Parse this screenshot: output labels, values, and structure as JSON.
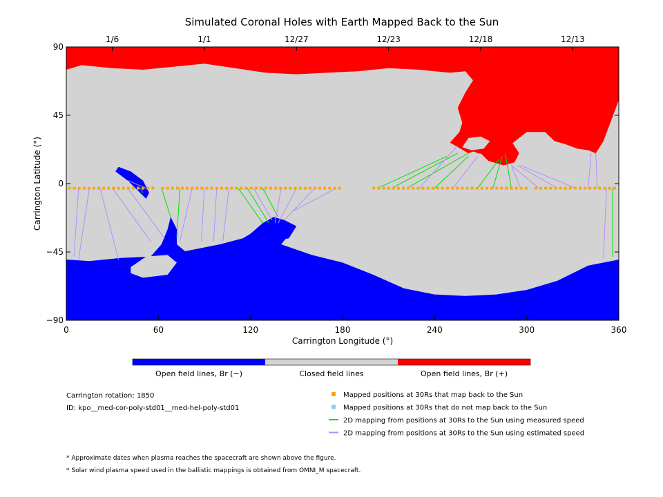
{
  "chart_data": {
    "type": "map",
    "title": "Simulated Coronal Holes with Earth Mapped Back to the Sun",
    "xlabel": "Carrington Longitude (°)",
    "ylabel": "Carrington Latitude (°)",
    "xlim": [
      0,
      360
    ],
    "ylim": [
      -90,
      90
    ],
    "xticks": [
      0,
      60,
      120,
      180,
      240,
      300,
      360
    ],
    "yticks": [
      -90,
      -45,
      0,
      45,
      90
    ],
    "top_axis": {
      "labels": [
        "1/6",
        "1/1",
        "12/27",
        "12/23",
        "12/18",
        "12/13"
      ],
      "longitudes": [
        30,
        90,
        150,
        210,
        270,
        330
      ]
    },
    "colorbar": [
      {
        "label": "Open field lines, Br (−)",
        "color": "#0000ff"
      },
      {
        "label": "Closed field lines",
        "color": "#d3d3d3"
      },
      {
        "label": "Open field lines, Br (+)",
        "color": "#ff0000"
      }
    ],
    "regions": {
      "north_red": [
        [
          0,
          75
        ],
        [
          10,
          78
        ],
        [
          30,
          76
        ],
        [
          50,
          75
        ],
        [
          70,
          77
        ],
        [
          90,
          79
        ],
        [
          110,
          76
        ],
        [
          130,
          73
        ],
        [
          150,
          72
        ],
        [
          170,
          73
        ],
        [
          190,
          74
        ],
        [
          210,
          76
        ],
        [
          230,
          75
        ],
        [
          250,
          73
        ],
        [
          260,
          74
        ],
        [
          265,
          68
        ],
        [
          260,
          60
        ],
        [
          255,
          50
        ],
        [
          258,
          40
        ],
        [
          255,
          30
        ],
        [
          260,
          24
        ],
        [
          268,
          20
        ],
        [
          280,
          18
        ],
        [
          290,
          26
        ],
        [
          300,
          34
        ],
        [
          312,
          34
        ],
        [
          318,
          28
        ],
        [
          325,
          26
        ],
        [
          333,
          23
        ],
        [
          340,
          22
        ],
        [
          345,
          20
        ],
        [
          350,
          28
        ],
        [
          360,
          55
        ],
        [
          360,
          90
        ],
        [
          0,
          90
        ]
      ],
      "north_red_island": [
        [
          250,
          27
        ],
        [
          262,
          20
        ],
        [
          268,
          22
        ],
        [
          275,
          15
        ],
        [
          285,
          12
        ],
        [
          292,
          14
        ],
        [
          295,
          20
        ],
        [
          290,
          28
        ],
        [
          280,
          34
        ],
        [
          270,
          38
        ],
        [
          258,
          36
        ]
      ],
      "south_blue": [
        [
          0,
          -50
        ],
        [
          15,
          -51
        ],
        [
          35,
          -49
        ],
        [
          55,
          -48
        ],
        [
          70,
          -46
        ],
        [
          85,
          -43
        ],
        [
          100,
          -40
        ],
        [
          115,
          -36
        ],
        [
          125,
          -30
        ],
        [
          135,
          -24
        ],
        [
          148,
          -30
        ],
        [
          140,
          -40
        ],
        [
          160,
          -47
        ],
        [
          180,
          -52
        ],
        [
          200,
          -60
        ],
        [
          220,
          -69
        ],
        [
          240,
          -73
        ],
        [
          260,
          -74
        ],
        [
          280,
          -73
        ],
        [
          300,
          -70
        ],
        [
          320,
          -64
        ],
        [
          340,
          -54
        ],
        [
          360,
          -50
        ],
        [
          360,
          -90
        ],
        [
          0,
          -90
        ]
      ],
      "south_blue_lobe": [
        [
          120,
          -33
        ],
        [
          128,
          -26
        ],
        [
          135,
          -22
        ],
        [
          142,
          -24
        ],
        [
          150,
          -28
        ],
        [
          145,
          -36
        ],
        [
          134,
          -38
        ]
      ],
      "south_blue_bridge": [
        [
          55,
          -48
        ],
        [
          62,
          -40
        ],
        [
          66,
          -30
        ],
        [
          68,
          -22
        ],
        [
          72,
          -30
        ],
        [
          72,
          -40
        ],
        [
          78,
          -45
        ]
      ],
      "closed_hole": [
        [
          42,
          -55
        ],
        [
          52,
          -48
        ],
        [
          66,
          -47
        ],
        [
          72,
          -52
        ],
        [
          66,
          -60
        ],
        [
          50,
          -62
        ],
        [
          42,
          -59
        ]
      ],
      "north_blue_island": [
        [
          34,
          11
        ],
        [
          42,
          8
        ],
        [
          50,
          2
        ],
        [
          54,
          -6
        ],
        [
          52,
          -10
        ],
        [
          46,
          -4
        ],
        [
          40,
          2
        ],
        [
          32,
          8
        ]
      ],
      "north_hole_closed": [
        [
          258,
          24
        ],
        [
          262,
          30
        ],
        [
          270,
          31
        ],
        [
          276,
          28
        ],
        [
          272,
          23
        ],
        [
          264,
          22
        ]
      ]
    },
    "mapped_positions": {
      "lon_start": 2,
      "lon_end": 358,
      "step": 3.2,
      "lat": -3,
      "color": "#ffa500"
    },
    "mappings": [
      {
        "type": "estimated",
        "from_lon": 8,
        "to": [
          5,
          -48
        ]
      },
      {
        "type": "estimated",
        "from_lon": 15,
        "to": [
          8,
          -50
        ]
      },
      {
        "type": "estimated",
        "from_lon": 22,
        "to": [
          34,
          -50
        ]
      },
      {
        "type": "estimated",
        "from_lon": 30,
        "to": [
          55,
          -38
        ]
      },
      {
        "type": "estimated",
        "from_lon": 40,
        "to": [
          64,
          -36
        ]
      },
      {
        "type": "measured",
        "from_lon": 48,
        "to": [
          50,
          -6
        ]
      },
      {
        "type": "estimated",
        "from_lon": 52,
        "to": [
          40,
          2
        ]
      },
      {
        "type": "measured",
        "from_lon": 62,
        "to": [
          68,
          -22
        ]
      },
      {
        "type": "measured",
        "from_lon": 74,
        "to": [
          72,
          -36
        ]
      },
      {
        "type": "estimated",
        "from_lon": 82,
        "to": [
          74,
          -38
        ]
      },
      {
        "type": "estimated",
        "from_lon": 90,
        "to": [
          88,
          -38
        ]
      },
      {
        "type": "estimated",
        "from_lon": 98,
        "to": [
          96,
          -38
        ]
      },
      {
        "type": "estimated",
        "from_lon": 106,
        "to": [
          102,
          -38
        ]
      },
      {
        "type": "measured",
        "from_lon": 112,
        "to": [
          128,
          -26
        ]
      },
      {
        "type": "measured",
        "from_lon": 118,
        "to": [
          132,
          -26
        ]
      },
      {
        "type": "estimated",
        "from_lon": 122,
        "to": [
          134,
          -24
        ]
      },
      {
        "type": "measured",
        "from_lon": 128,
        "to": [
          138,
          -22
        ]
      },
      {
        "type": "estimated",
        "from_lon": 140,
        "to": [
          136,
          -26
        ]
      },
      {
        "type": "estimated",
        "from_lon": 150,
        "to": [
          138,
          -26
        ]
      },
      {
        "type": "estimated",
        "from_lon": 162,
        "to": [
          142,
          -24
        ]
      },
      {
        "type": "estimated",
        "from_lon": 176,
        "to": [
          148,
          -18
        ]
      },
      {
        "type": "measured",
        "from_lon": 203,
        "to": [
          248,
          18
        ]
      },
      {
        "type": "measured",
        "from_lon": 212,
        "to": [
          255,
          20
        ]
      },
      {
        "type": "measured",
        "from_lon": 222,
        "to": [
          262,
          20
        ]
      },
      {
        "type": "estimated",
        "from_lon": 230,
        "to": [
          255,
          25
        ]
      },
      {
        "type": "measured",
        "from_lon": 240,
        "to": [
          262,
          18
        ]
      },
      {
        "type": "estimated",
        "from_lon": 252,
        "to": [
          268,
          18
        ]
      },
      {
        "type": "measured",
        "from_lon": 268,
        "to": [
          282,
          16
        ]
      },
      {
        "type": "measured",
        "from_lon": 278,
        "to": [
          284,
          18
        ]
      },
      {
        "type": "measured",
        "from_lon": 290,
        "to": [
          286,
          20
        ]
      },
      {
        "type": "estimated",
        "from_lon": 296,
        "to": [
          290,
          12
        ]
      },
      {
        "type": "estimated",
        "from_lon": 308,
        "to": [
          290,
          12
        ]
      },
      {
        "type": "estimated",
        "from_lon": 320,
        "to": [
          294,
          12
        ]
      },
      {
        "type": "estimated",
        "from_lon": 332,
        "to": [
          296,
          12
        ]
      },
      {
        "type": "estimated",
        "from_lon": 340,
        "to": [
          342,
          20
        ]
      },
      {
        "type": "estimated",
        "from_lon": 346,
        "to": [
          345,
          20
        ]
      },
      {
        "type": "estimated",
        "from_lon": 352,
        "to": [
          350,
          -49
        ]
      },
      {
        "type": "measured",
        "from_lon": 356,
        "to": [
          356,
          -48
        ]
      }
    ],
    "mapping_colors": {
      "measured": "#00e000",
      "estimated": "#b58cff"
    },
    "legend": [
      {
        "marker": "square",
        "color": "#ffa500",
        "label": "Mapped positions at 30Rs that map back to the Sun"
      },
      {
        "marker": "square",
        "color": "#87cefa",
        "label": "Mapped positions at 30Rs that do not map back to the Sun"
      },
      {
        "marker": "line",
        "color": "#00e000",
        "label": "2D mapping from positions at 30Rs to the Sun using measured speed"
      },
      {
        "marker": "line",
        "color": "#b58cff",
        "label": "2D mapping from positions at 30Rs to the Sun using estimated speed"
      }
    ]
  },
  "info": {
    "rotation": "Carrington rotation: 1850",
    "id": "ID: kpo__med-cor-poly-std01__med-hel-poly-std01"
  },
  "footnotes": [
    "* Approximate dates when plasma reaches the spacecraft are shown above the figure.",
    "* Solar wind plasma speed used in the ballistic mappings is obtained from OMNI_M spacecraft."
  ],
  "colors": {
    "closed": "#d3d3d3",
    "negative": "#0000ff",
    "positive": "#ff0000"
  }
}
